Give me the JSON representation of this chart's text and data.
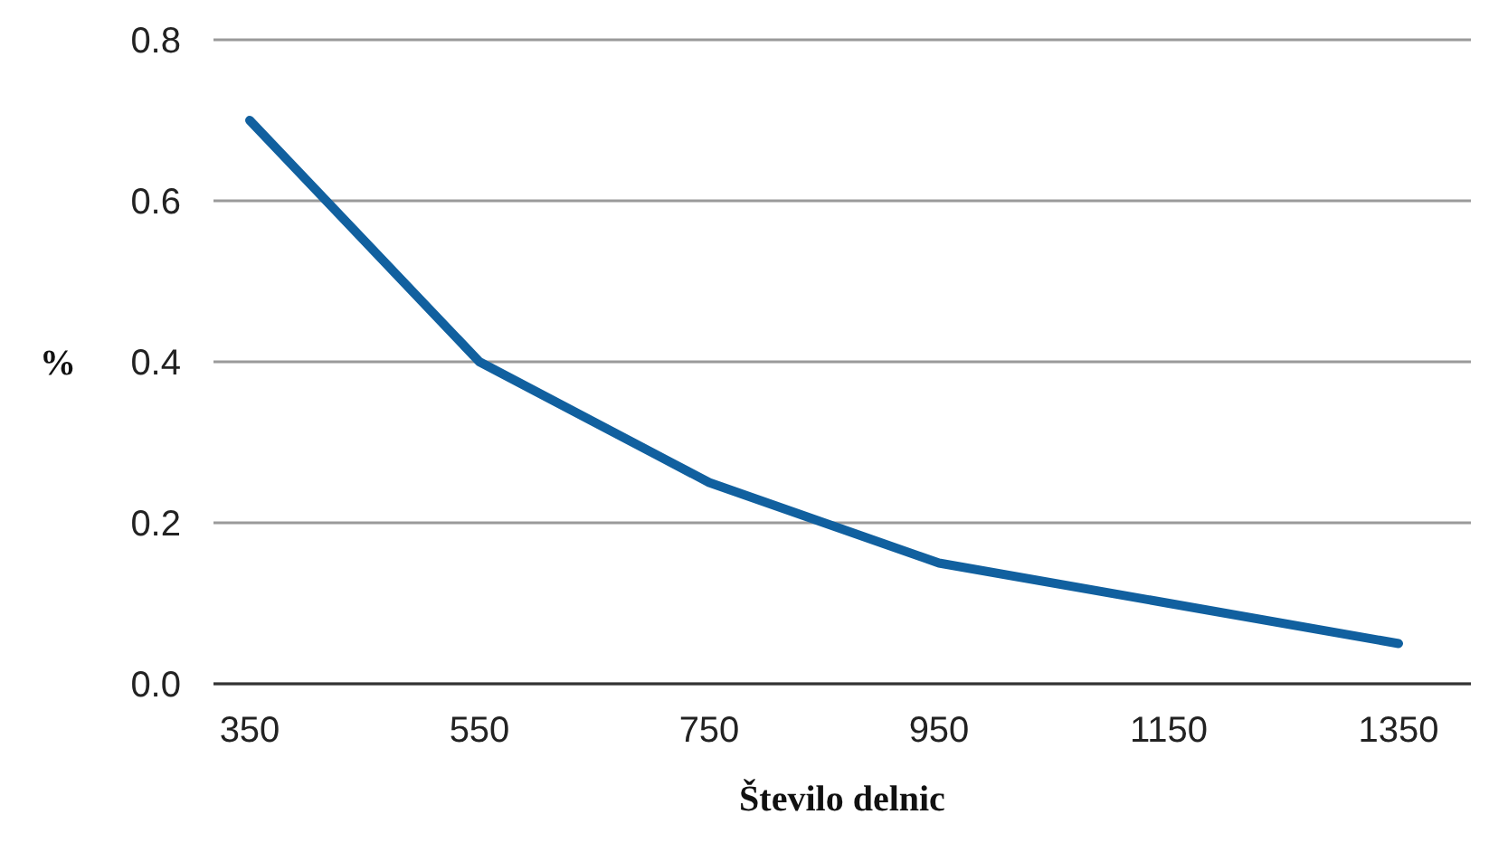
{
  "chart_data": {
    "type": "line",
    "xlabel": "Število delnic",
    "ylabel": "%",
    "categories": [
      "350",
      "550",
      "750",
      "950",
      "1150",
      "1350"
    ],
    "series": [
      {
        "color": "#11609f",
        "values": [
          0.7,
          0.4,
          0.25,
          0.15,
          0.1,
          0.05
        ]
      }
    ],
    "ylim": [
      0,
      0.8
    ],
    "yticks": [
      {
        "value": 0,
        "label": "0.0"
      },
      {
        "value": 0.2,
        "label": "0.2"
      },
      {
        "value": 0.4,
        "label": "0.4"
      },
      {
        "value": 0.6,
        "label": "0.6"
      },
      {
        "value": 0.8,
        "label": "0.8"
      }
    ],
    "grid": "y",
    "marker": "none",
    "line_style": "solid"
  }
}
